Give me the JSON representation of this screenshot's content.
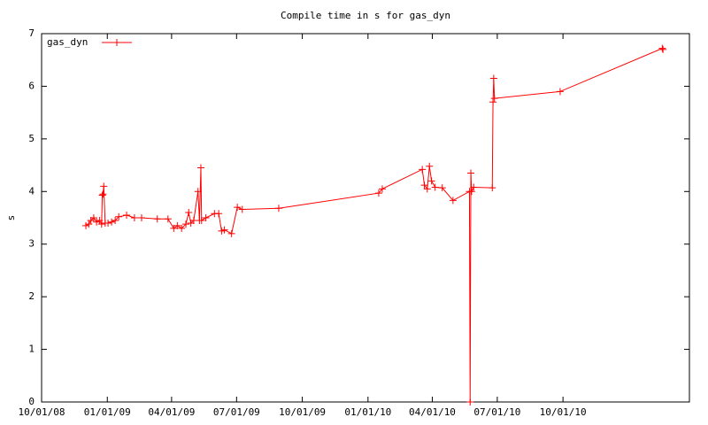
{
  "chart_data": {
    "type": "line",
    "title": "Compile time in s for gas_dyn",
    "y_label": "s",
    "x": [
      "2008-12-02",
      "2008-12-06",
      "2008-12-09",
      "2008-12-13",
      "2008-12-17",
      "2008-12-21",
      "2008-12-24",
      "2008-12-25",
      "2008-12-26",
      "2008-12-27",
      "2008-12-29",
      "2009-01-02",
      "2009-01-07",
      "2009-01-12",
      "2009-01-17",
      "2009-01-28",
      "2009-02-08",
      "2009-02-18",
      "2009-03-12",
      "2009-03-27",
      "2009-04-04",
      "2009-04-09",
      "2009-04-15",
      "2009-04-21",
      "2009-04-25",
      "2009-04-28",
      "2009-05-02",
      "2009-05-08",
      "2009-05-10",
      "2009-05-12",
      "2009-05-13",
      "2009-05-19",
      "2009-05-31",
      "2009-06-06",
      "2009-06-10",
      "2009-06-14",
      "2009-06-24",
      "2009-07-02",
      "2009-07-09",
      "2009-08-29",
      "2010-01-16",
      "2010-01-21",
      "2010-03-18",
      "2010-03-21",
      "2010-03-25",
      "2010-03-28",
      "2010-03-31",
      "2010-04-05",
      "2010-04-15",
      "2010-04-30",
      "2010-05-23",
      "2010-05-24",
      "2010-05-25",
      "2010-05-26",
      "2010-05-29",
      "2010-06-24",
      "2010-06-25",
      "2010-06-26",
      "2010-06-27",
      "2010-09-27",
      "2011-02-17",
      "2011-02-18"
    ],
    "series": [
      {
        "name": "gas_dyn",
        "color": "#ff0000",
        "values": [
          3.35,
          3.38,
          3.45,
          3.5,
          3.42,
          3.45,
          3.38,
          3.93,
          3.95,
          4.1,
          3.4,
          3.4,
          3.42,
          3.45,
          3.52,
          3.55,
          3.5,
          3.5,
          3.48,
          3.48,
          3.3,
          3.35,
          3.3,
          3.38,
          3.6,
          3.4,
          3.45,
          4.0,
          3.45,
          4.45,
          3.45,
          3.5,
          3.58,
          3.58,
          3.25,
          3.27,
          3.2,
          3.7,
          3.66,
          3.68,
          3.97,
          4.05,
          4.42,
          4.12,
          4.05,
          4.48,
          4.2,
          4.08,
          4.07,
          3.83,
          4.0,
          0,
          4.35,
          4.0,
          4.08,
          4.07,
          5.7,
          6.15,
          5.77,
          5.9,
          6.72,
          6.7
        ]
      }
    ],
    "xlim": [
      "2008-10-01",
      "2011-03-27"
    ],
    "xticks": [
      {
        "value": "2008-10-01",
        "label": "10/01/08"
      },
      {
        "value": "2009-01-01",
        "label": "01/01/09"
      },
      {
        "value": "2009-04-01",
        "label": "04/01/09"
      },
      {
        "value": "2009-07-01",
        "label": "07/01/09"
      },
      {
        "value": "2009-10-01",
        "label": "10/01/09"
      },
      {
        "value": "2010-01-01",
        "label": "01/01/10"
      },
      {
        "value": "2010-04-01",
        "label": "04/01/10"
      },
      {
        "value": "2010-07-01",
        "label": "07/01/10"
      },
      {
        "value": "2010-10-01",
        "label": "10/01/10"
      }
    ],
    "ylim": [
      0,
      7
    ],
    "yticks": [
      0,
      1,
      2,
      3,
      4,
      5,
      6,
      7
    ],
    "legend": "top-left"
  }
}
